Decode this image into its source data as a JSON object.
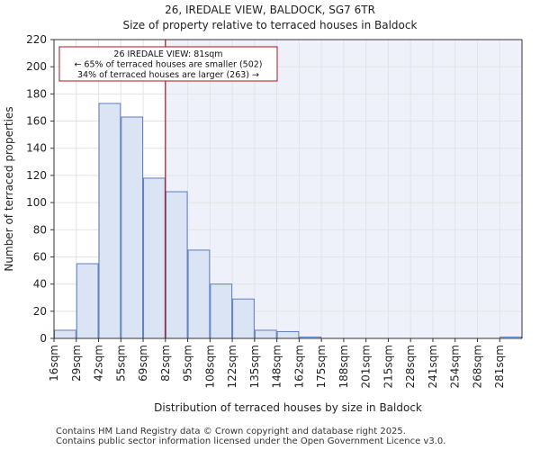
{
  "header": {
    "title": "26, IREDALE VIEW, BALDOCK, SG7 6TR",
    "subtitle": "Size of property relative to terraced houses in Baldock"
  },
  "footer": {
    "line1": "Contains HM Land Registry data © Crown copyright and database right 2025.",
    "line2": "Contains public sector information licensed under the Open Government Licence v3.0."
  },
  "colors": {
    "bar_fill": "#dbe4f5",
    "bar_stroke": "#5b7fbf",
    "highlight_bg": "#eef1fa",
    "marker": "#b0131b",
    "grid": "#e3e3e3"
  },
  "chart_data": {
    "type": "bar",
    "title": "Size of property relative to terraced houses in Baldock",
    "xlabel": "Distribution of terraced houses by size in Baldock",
    "ylabel": "Number of terraced properties",
    "ylim": [
      0,
      220
    ],
    "yticks": [
      0,
      20,
      40,
      60,
      80,
      100,
      120,
      140,
      160,
      180,
      200,
      220
    ],
    "categories": [
      "16sqm",
      "29sqm",
      "42sqm",
      "55sqm",
      "69sqm",
      "82sqm",
      "95sqm",
      "108sqm",
      "122sqm",
      "135sqm",
      "148sqm",
      "162sqm",
      "175sqm",
      "188sqm",
      "201sqm",
      "215sqm",
      "228sqm",
      "241sqm",
      "254sqm",
      "268sqm",
      "281sqm"
    ],
    "values": [
      6,
      55,
      173,
      163,
      118,
      108,
      65,
      40,
      29,
      6,
      5,
      1,
      0,
      0,
      0,
      0,
      0,
      0,
      0,
      0,
      1
    ],
    "marker": {
      "value_sqm": 81,
      "position_in_bins": 5.0,
      "label_line1": "26 IREDALE VIEW: 81sqm",
      "label_line2": "← 65% of terraced houses are smaller (502)",
      "label_line3": "34% of terraced houses are larger (263) →"
    },
    "grid": true
  }
}
